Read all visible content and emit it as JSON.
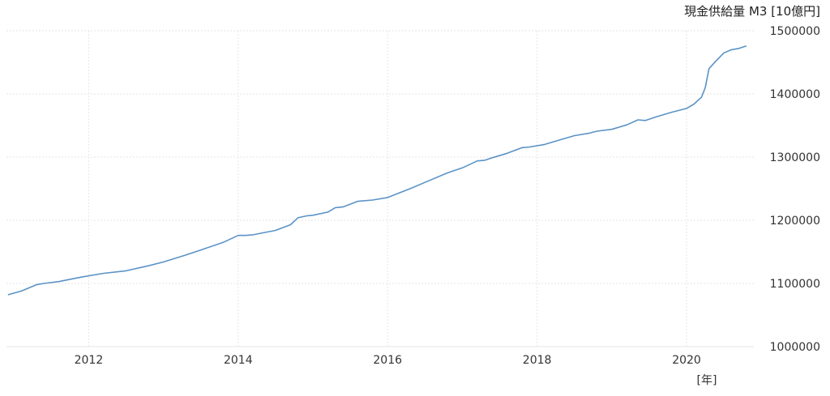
{
  "chart_data": {
    "type": "line",
    "title": "現金供給量 M3 [10億円]",
    "xlabel": "[年]",
    "ylabel": "",
    "x_ticks": [
      "2012",
      "2014",
      "2016",
      "2018",
      "2020"
    ],
    "y_ticks": [
      "1000000",
      "1100000",
      "1200000",
      "1300000",
      "1400000",
      "1500000"
    ],
    "xlim": [
      2010.9,
      2020.9
    ],
    "ylim": [
      1000000,
      1500000
    ],
    "grid": true,
    "line_color": "#5b93c6",
    "series": [
      {
        "x": [
          2010.92,
          2011.1,
          2011.3,
          2011.4,
          2011.6,
          2011.9,
          2012.2,
          2012.5,
          2012.8,
          2013.0,
          2013.3,
          2013.5,
          2013.8,
          2014.0,
          2014.1,
          2014.2,
          2014.5,
          2014.7,
          2014.8,
          2014.92,
          2015.0,
          2015.2,
          2015.3,
          2015.4,
          2015.6,
          2015.8,
          2016.0,
          2016.3,
          2016.5,
          2016.8,
          2017.0,
          2017.2,
          2017.3,
          2017.4,
          2017.6,
          2017.8,
          2017.9,
          2018.1,
          2018.3,
          2018.5,
          2018.7,
          2018.8,
          2019.0,
          2019.2,
          2019.35,
          2019.45,
          2019.6,
          2019.8,
          2020.0,
          2020.1,
          2020.2,
          2020.25,
          2020.3,
          2020.4,
          2020.5,
          2020.6,
          2020.7,
          2020.8
        ],
        "y": [
          1082000,
          1088000,
          1098000,
          1100000,
          1103000,
          1110000,
          1116000,
          1120000,
          1128000,
          1134000,
          1145000,
          1153000,
          1165000,
          1176000,
          1176000,
          1177000,
          1184000,
          1193000,
          1204000,
          1207000,
          1208000,
          1213000,
          1220000,
          1221000,
          1230000,
          1232000,
          1236000,
          1250000,
          1260000,
          1275000,
          1283000,
          1294000,
          1295000,
          1299000,
          1306000,
          1315000,
          1316000,
          1320000,
          1327000,
          1334000,
          1338000,
          1341000,
          1344000,
          1351000,
          1359000,
          1358000,
          1364000,
          1371000,
          1377000,
          1384000,
          1395000,
          1410000,
          1440000,
          1453000,
          1465000,
          1470000,
          1472000,
          1476000
        ]
      }
    ]
  }
}
